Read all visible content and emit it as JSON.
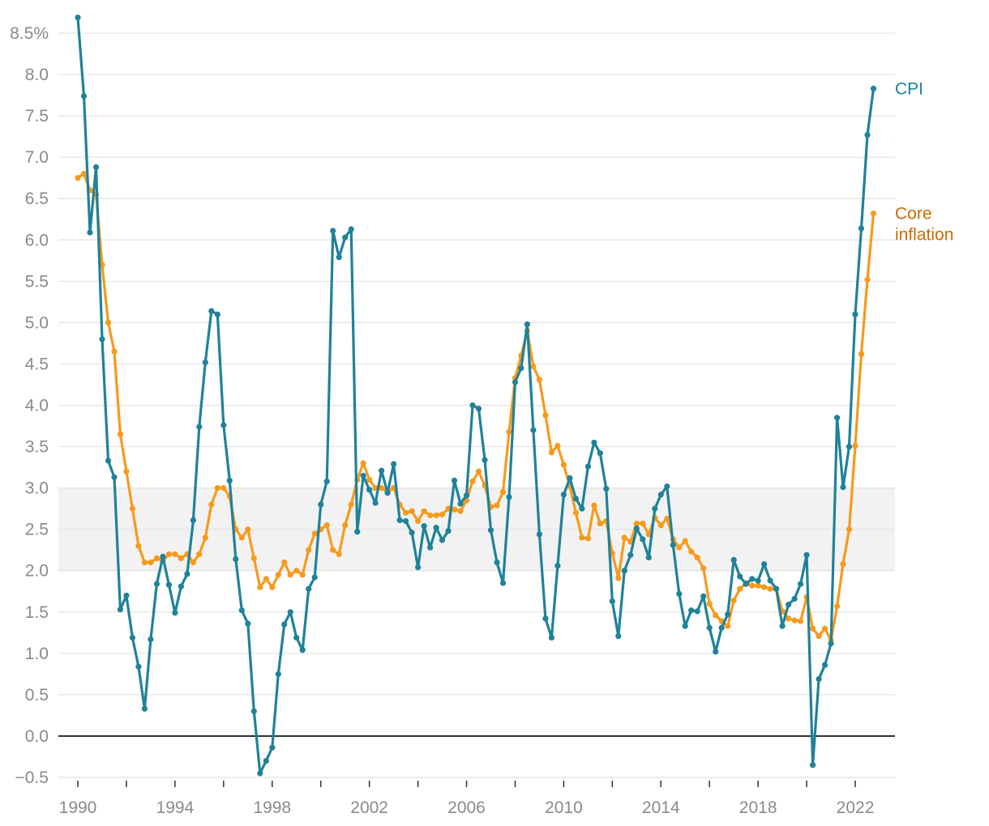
{
  "chart_data": {
    "type": "line",
    "title": "",
    "xlabel": "",
    "ylabel": "",
    "x_range": [
      1990,
      2023
    ],
    "ylim": [
      -0.5,
      8.5
    ],
    "y_ticks": [
      8.5,
      8.0,
      7.5,
      7.0,
      6.5,
      6.0,
      5.5,
      5.0,
      4.5,
      4.0,
      3.5,
      3.0,
      2.5,
      2.0,
      1.5,
      1.0,
      0.5,
      0.0,
      -0.5
    ],
    "y_tick_labels": [
      "8.5%",
      "8.0",
      "7.5",
      "7.0",
      "6.5",
      "6.0",
      "5.5",
      "5.0",
      "4.5",
      "4.0",
      "3.5",
      "3.0",
      "2.5",
      "2.0",
      "1.5",
      "1.0",
      "0.5",
      "0.0",
      "−0.5"
    ],
    "x_ticks": [
      1990,
      1992,
      1994,
      1996,
      1998,
      2000,
      2002,
      2004,
      2006,
      2008,
      2010,
      2012,
      2014,
      2016,
      2018,
      2020,
      2022
    ],
    "x_tick_labels": [
      "1990",
      "",
      "1994",
      "",
      "1998",
      "",
      "2002",
      "",
      "2006",
      "",
      "2010",
      "",
      "2014",
      "",
      "2018",
      "",
      "2022"
    ],
    "target_band": [
      2.0,
      3.0
    ],
    "zero_line": true,
    "grid": true,
    "colors": {
      "cpi": "#1f8299",
      "core": "#f79a1c",
      "core_label": "#cc6b00",
      "band": "#f2f2f2",
      "grid": "#e3e3e3",
      "zero": "#222222"
    },
    "series": [
      {
        "name": "CPI",
        "label_lines": [
          "CPI"
        ],
        "x": [
          1990.0,
          1990.25,
          1990.5,
          1990.75,
          1991.0,
          1991.25,
          1991.5,
          1991.75,
          1992.0,
          1992.25,
          1992.5,
          1992.75,
          1993.0,
          1993.25,
          1993.5,
          1993.75,
          1994.0,
          1994.25,
          1994.5,
          1994.75,
          1995.0,
          1995.25,
          1995.5,
          1995.75,
          1996.0,
          1996.25,
          1996.5,
          1996.75,
          1997.0,
          1997.25,
          1997.5,
          1997.75,
          1998.0,
          1998.25,
          1998.5,
          1998.75,
          1999.0,
          1999.25,
          1999.5,
          1999.75,
          2000.0,
          2000.25,
          2000.5,
          2000.75,
          2001.0,
          2001.25,
          2001.5,
          2001.75,
          2002.0,
          2002.25,
          2002.5,
          2002.75,
          2003.0,
          2003.25,
          2003.5,
          2003.75,
          2004.0,
          2004.25,
          2004.5,
          2004.75,
          2005.0,
          2005.25,
          2005.5,
          2005.75,
          2006.0,
          2006.25,
          2006.5,
          2006.75,
          2007.0,
          2007.25,
          2007.5,
          2007.75,
          2008.0,
          2008.25,
          2008.5,
          2008.75,
          2009.0,
          2009.25,
          2009.5,
          2009.75,
          2010.0,
          2010.25,
          2010.5,
          2010.75,
          2011.0,
          2011.25,
          2011.5,
          2011.75,
          2012.0,
          2012.25,
          2012.5,
          2012.75,
          2013.0,
          2013.25,
          2013.5,
          2013.75,
          2014.0,
          2014.25,
          2014.5,
          2014.75,
          2015.0,
          2015.25,
          2015.5,
          2015.75,
          2016.0,
          2016.25,
          2016.5,
          2016.75,
          2017.0,
          2017.25,
          2017.5,
          2017.75,
          2018.0,
          2018.25,
          2018.5,
          2018.75,
          2019.0,
          2019.25,
          2019.5,
          2019.75,
          2020.0,
          2020.25,
          2020.5,
          2020.75,
          2021.0,
          2021.25,
          2021.5,
          2021.75,
          2022.0,
          2022.25,
          2022.5,
          2022.75
        ],
        "values": [
          8.69,
          7.74,
          6.09,
          6.88,
          4.8,
          3.33,
          3.13,
          1.53,
          1.7,
          1.19,
          0.84,
          0.33,
          1.17,
          1.84,
          2.17,
          1.83,
          1.49,
          1.81,
          1.96,
          2.61,
          3.74,
          4.52,
          5.14,
          5.1,
          3.76,
          3.09,
          2.14,
          1.52,
          1.36,
          0.3,
          -0.45,
          -0.3,
          -0.14,
          0.75,
          1.35,
          1.5,
          1.19,
          1.04,
          1.78,
          1.92,
          2.8,
          3.08,
          6.11,
          5.79,
          6.03,
          6.13,
          2.47,
          3.15,
          2.98,
          2.82,
          3.21,
          2.94,
          3.29,
          2.61,
          2.6,
          2.46,
          2.04,
          2.54,
          2.28,
          2.52,
          2.37,
          2.48,
          3.09,
          2.81,
          2.91,
          4.0,
          3.96,
          3.34,
          2.49,
          2.1,
          1.85,
          2.89,
          4.28,
          4.45,
          4.98,
          3.7,
          2.44,
          1.42,
          1.19,
          2.06,
          2.92,
          3.12,
          2.87,
          2.75,
          3.26,
          3.55,
          3.42,
          2.99,
          1.63,
          1.21,
          2.0,
          2.19,
          2.51,
          2.38,
          2.16,
          2.75,
          2.92,
          3.02,
          2.31,
          1.72,
          1.33,
          1.52,
          1.51,
          1.69,
          1.31,
          1.02,
          1.31,
          1.47,
          2.13,
          1.93,
          1.84,
          1.9,
          1.88,
          2.08,
          1.88,
          1.78,
          1.33,
          1.59,
          1.66,
          1.84,
          2.19,
          -0.35,
          0.69,
          0.86,
          1.12,
          3.85,
          3.01,
          3.5,
          5.1,
          6.14,
          7.27,
          7.83
        ]
      },
      {
        "name": "Core inflation",
        "label_lines": [
          "Core",
          "inflation"
        ],
        "x": [
          1990.0,
          1990.25,
          1990.5,
          1990.75,
          1991.0,
          1991.25,
          1991.5,
          1991.75,
          1992.0,
          1992.25,
          1992.5,
          1992.75,
          1993.0,
          1993.25,
          1993.5,
          1993.75,
          1994.0,
          1994.25,
          1994.5,
          1994.75,
          1995.0,
          1995.25,
          1995.5,
          1995.75,
          1996.0,
          1996.25,
          1996.5,
          1996.75,
          1997.0,
          1997.25,
          1997.5,
          1997.75,
          1998.0,
          1998.25,
          1998.5,
          1998.75,
          1999.0,
          1999.25,
          1999.5,
          1999.75,
          2000.0,
          2000.25,
          2000.5,
          2000.75,
          2001.0,
          2001.25,
          2001.5,
          2001.75,
          2002.0,
          2002.25,
          2002.5,
          2002.75,
          2003.0,
          2003.25,
          2003.5,
          2003.75,
          2004.0,
          2004.25,
          2004.5,
          2004.75,
          2005.0,
          2005.25,
          2005.5,
          2005.75,
          2006.0,
          2006.25,
          2006.5,
          2006.75,
          2007.0,
          2007.25,
          2007.5,
          2007.75,
          2008.0,
          2008.25,
          2008.5,
          2008.75,
          2009.0,
          2009.25,
          2009.5,
          2009.75,
          2010.0,
          2010.25,
          2010.5,
          2010.75,
          2011.0,
          2011.25,
          2011.5,
          2011.75,
          2012.0,
          2012.25,
          2012.5,
          2012.75,
          2013.0,
          2013.25,
          2013.5,
          2013.75,
          2014.0,
          2014.25,
          2014.5,
          2014.75,
          2015.0,
          2015.25,
          2015.5,
          2015.75,
          2016.0,
          2016.25,
          2016.5,
          2016.75,
          2017.0,
          2017.25,
          2017.5,
          2017.75,
          2018.0,
          2018.25,
          2018.5,
          2018.75,
          2019.0,
          2019.25,
          2019.5,
          2019.75,
          2020.0,
          2020.25,
          2020.5,
          2020.75,
          2021.0,
          2021.25,
          2021.5,
          2021.75,
          2022.0,
          2022.25,
          2022.5,
          2022.75
        ],
        "values": [
          6.75,
          6.8,
          6.6,
          6.55,
          5.7,
          5.0,
          4.65,
          3.65,
          3.2,
          2.75,
          2.3,
          2.1,
          2.1,
          2.15,
          2.12,
          2.2,
          2.2,
          2.15,
          2.2,
          2.1,
          2.2,
          2.4,
          2.8,
          3.0,
          3.0,
          2.9,
          2.5,
          2.4,
          2.5,
          2.15,
          1.8,
          1.9,
          1.8,
          1.95,
          2.1,
          1.95,
          2.0,
          1.95,
          2.25,
          2.45,
          2.5,
          2.55,
          2.25,
          2.2,
          2.55,
          2.8,
          3.1,
          3.3,
          3.1,
          3.0,
          3.0,
          2.95,
          3.0,
          2.8,
          2.7,
          2.72,
          2.6,
          2.72,
          2.67,
          2.67,
          2.68,
          2.75,
          2.74,
          2.72,
          2.85,
          3.08,
          3.2,
          3.03,
          2.77,
          2.79,
          2.95,
          3.68,
          4.33,
          4.6,
          4.9,
          4.47,
          4.31,
          3.88,
          3.43,
          3.51,
          3.28,
          3.02,
          2.7,
          2.4,
          2.39,
          2.79,
          2.57,
          2.6,
          2.21,
          1.91,
          2.4,
          2.35,
          2.57,
          2.57,
          2.44,
          2.64,
          2.55,
          2.63,
          2.38,
          2.28,
          2.36,
          2.23,
          2.16,
          2.03,
          1.6,
          1.46,
          1.39,
          1.33,
          1.64,
          1.78,
          1.85,
          1.82,
          1.82,
          1.8,
          1.78,
          1.78,
          1.51,
          1.42,
          1.4,
          1.39,
          1.68,
          1.3,
          1.21,
          1.3,
          1.16,
          1.57,
          2.08,
          2.5,
          3.51,
          4.62,
          5.52,
          6.32
        ]
      }
    ]
  }
}
